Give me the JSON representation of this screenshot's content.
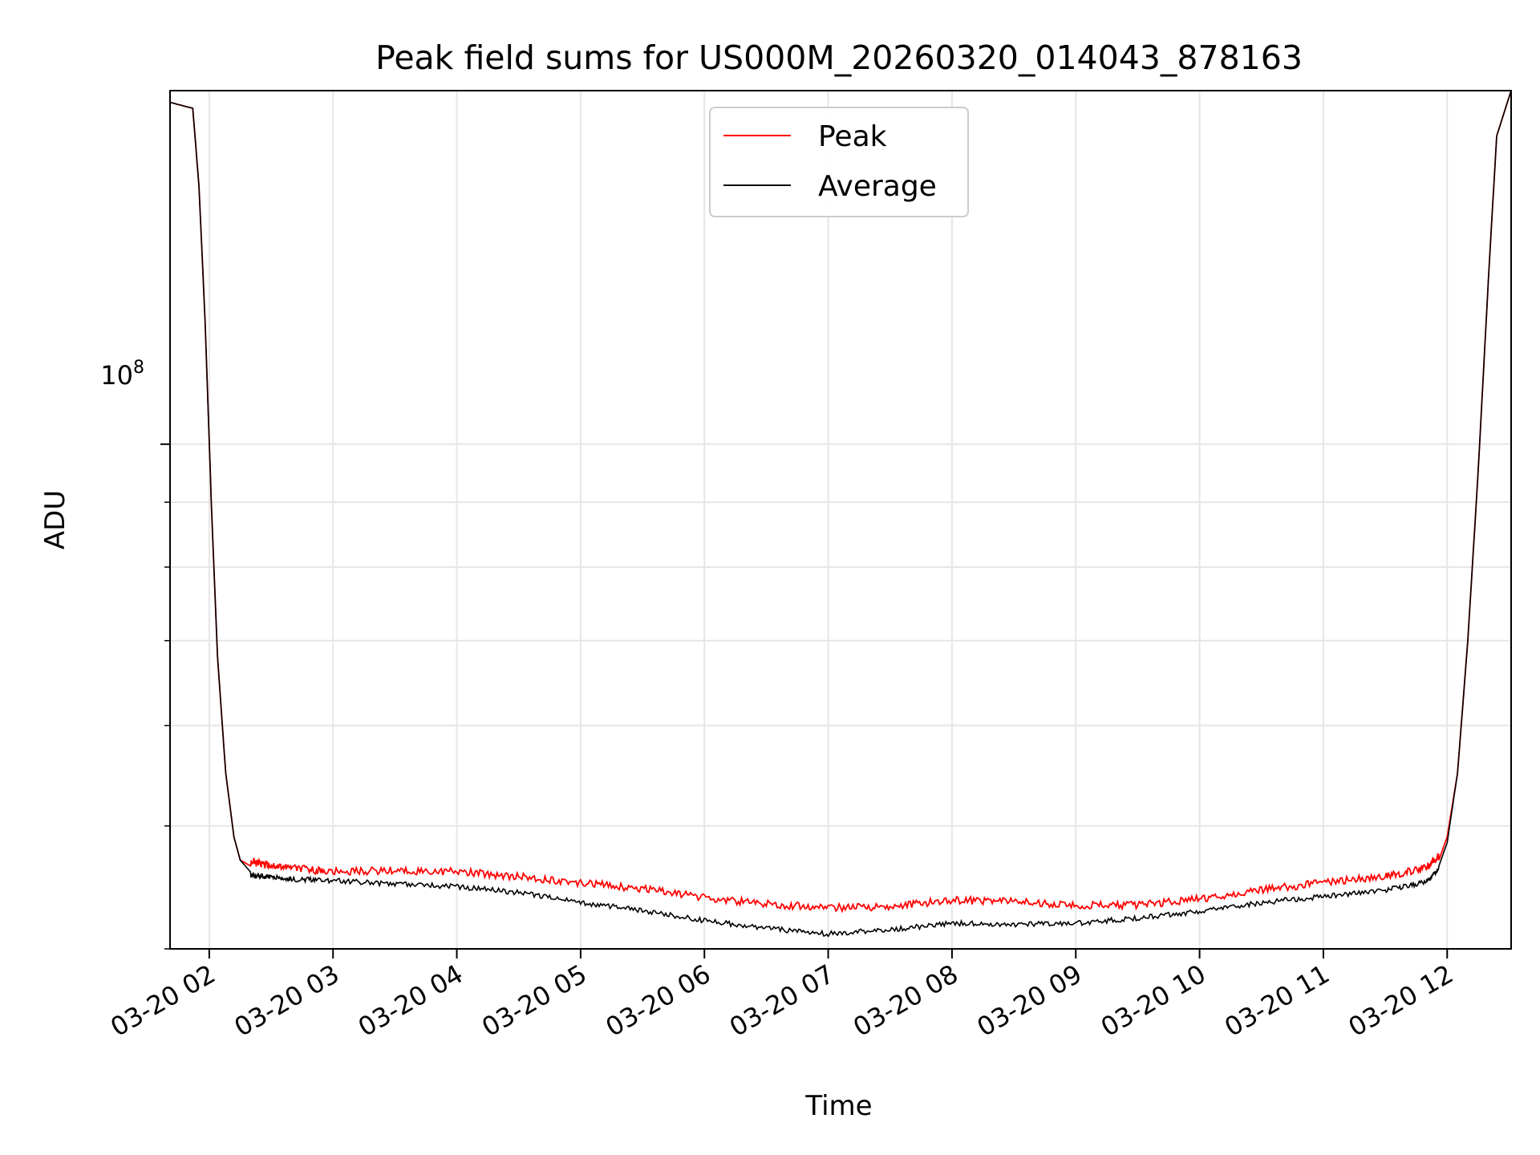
{
  "chart_data": {
    "type": "line",
    "title": "Peak field sums for US000M_20260320_014043_878163",
    "xlabel": "Time",
    "ylabel": "ADU",
    "yscale": "log",
    "xlim": [
      "2026-03-20 01:41",
      "2026-03-20 12:31"
    ],
    "ylim": [
      40000000,
      190000000
    ],
    "grid": true,
    "legend_position": "upper center",
    "x_ticks": [
      "03-20 02",
      "03-20 03",
      "03-20 04",
      "03-20 05",
      "03-20 06",
      "03-20 07",
      "03-20 08",
      "03-20 09",
      "03-20 10",
      "03-20 11",
      "03-20 12"
    ],
    "y_major_tick_label": "10",
    "y_major_tick_exponent": "8",
    "y_major_tick_value": 100000000,
    "x": [
      "2026-03-20 01:41",
      "2026-03-20 01:52",
      "2026-03-20 01:55",
      "2026-03-20 01:58",
      "2026-03-20 02:01",
      "2026-03-20 02:04",
      "2026-03-20 02:08",
      "2026-03-20 02:12",
      "2026-03-20 02:15",
      "2026-03-20 02:20",
      "2026-03-20 02:28",
      "2026-03-20 02:40",
      "2026-03-20 03:00",
      "2026-03-20 03:30",
      "2026-03-20 04:00",
      "2026-03-20 04:30",
      "2026-03-20 05:00",
      "2026-03-20 05:30",
      "2026-03-20 06:00",
      "2026-03-20 06:30",
      "2026-03-20 07:00",
      "2026-03-20 07:30",
      "2026-03-20 08:00",
      "2026-03-20 08:30",
      "2026-03-20 09:00",
      "2026-03-20 09:30",
      "2026-03-20 10:00",
      "2026-03-20 10:30",
      "2026-03-20 11:00",
      "2026-03-20 11:30",
      "2026-03-20 11:50",
      "2026-03-20 11:56",
      "2026-03-20 12:00",
      "2026-03-20 12:05",
      "2026-03-20 12:10",
      "2026-03-20 12:15",
      "2026-03-20 12:20",
      "2026-03-20 12:24",
      "2026-03-20 12:31"
    ],
    "series": [
      {
        "name": "Peak",
        "color": "#ff0000",
        "values": [
          186000000,
          184000000,
          160000000,
          125000000,
          90000000,
          68000000,
          55000000,
          49000000,
          47000000,
          46500000,
          46300000,
          46000000,
          45700000,
          45800000,
          45700000,
          45300000,
          44800000,
          44300000,
          43600000,
          43100000,
          42800000,
          42900000,
          43400000,
          43300000,
          43000000,
          43000000,
          43500000,
          44200000,
          44800000,
          45300000,
          46000000,
          47000000,
          49000000,
          55000000,
          70000000,
          95000000,
          135000000,
          175000000,
          190000000
        ]
      },
      {
        "name": "Average",
        "color": "#000000",
        "values": [
          186000000,
          184000000,
          160000000,
          125000000,
          90000000,
          68000000,
          55000000,
          49000000,
          47000000,
          46000000,
          45800000,
          45600000,
          45500000,
          45200000,
          45000000,
          44500000,
          43700000,
          43100000,
          42300000,
          41700000,
          41300000,
          41600000,
          42100000,
          42000000,
          42100000,
          42500000,
          43000000,
          43700000,
          44200000,
          44700000,
          45400000,
          46500000,
          48500000,
          55000000,
          70000000,
          95000000,
          135000000,
          175000000,
          190000000
        ]
      }
    ]
  }
}
